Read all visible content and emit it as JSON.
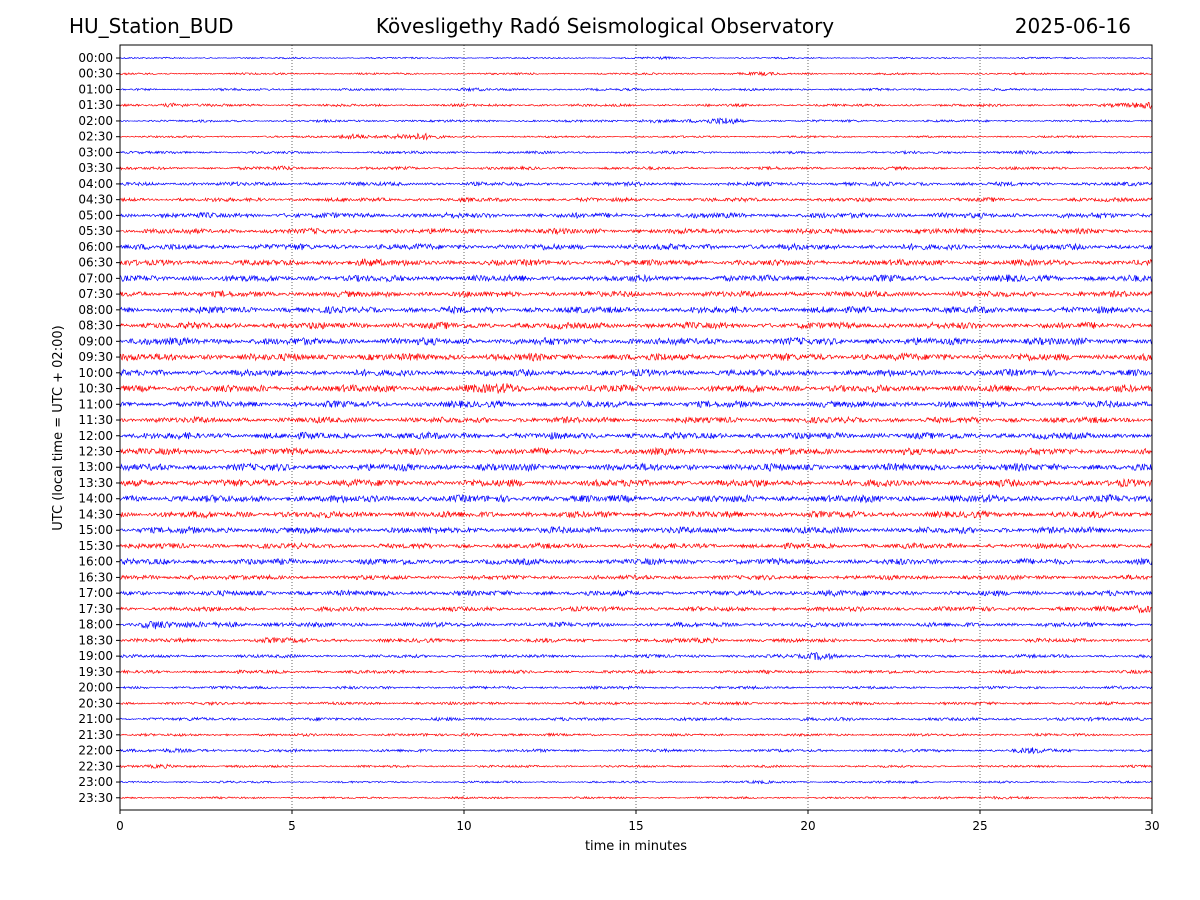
{
  "header": {
    "station": "HU_Station_BUD",
    "observatory": "Kövesligethy Radó Seismological Observatory",
    "date": "2025-06-16"
  },
  "chart_data": {
    "type": "line",
    "title": "Kövesligethy Radó Seismological Observatory",
    "xlabel": "time in minutes",
    "ylabel": "UTC (local time = UTC + 02:00)",
    "xlim": [
      0,
      30
    ],
    "x_ticks": [
      0,
      5,
      10,
      15,
      20,
      25,
      30
    ],
    "grid": "vertical dotted at x ticks",
    "row_colors": [
      "#0000ff",
      "#ff0000"
    ],
    "rows": [
      {
        "label": "00:00",
        "amp": 0.12,
        "events": [
          {
            "t": 15.5,
            "a": 0.1
          }
        ]
      },
      {
        "label": "00:30",
        "amp": 0.15,
        "events": [
          {
            "t": 18.5,
            "a": 0.15
          }
        ]
      },
      {
        "label": "01:00",
        "amp": 0.18,
        "events": [
          {
            "t": 10.0,
            "a": 0.1
          }
        ]
      },
      {
        "label": "01:30",
        "amp": 0.2,
        "events": [
          {
            "t": 1.5,
            "a": 0.25
          },
          {
            "t": 29.8,
            "a": 0.5
          }
        ]
      },
      {
        "label": "02:00",
        "amp": 0.18,
        "events": [
          {
            "t": 15.5,
            "a": 0.3
          },
          {
            "t": 17.5,
            "a": 0.4
          }
        ]
      },
      {
        "label": "02:30",
        "amp": 0.15,
        "events": [
          {
            "t": 7.0,
            "a": 0.6
          },
          {
            "t": 8.5,
            "a": 0.5
          }
        ]
      },
      {
        "label": "03:00",
        "amp": 0.2,
        "events": [
          {
            "t": 26.0,
            "a": 0.12
          }
        ]
      },
      {
        "label": "03:30",
        "amp": 0.22,
        "events": [
          {
            "t": 4.8,
            "a": 0.12
          }
        ]
      },
      {
        "label": "04:00",
        "amp": 0.3,
        "events": []
      },
      {
        "label": "04:30",
        "amp": 0.3,
        "events": []
      },
      {
        "label": "05:00",
        "amp": 0.4,
        "events": []
      },
      {
        "label": "05:30",
        "amp": 0.4,
        "events": []
      },
      {
        "label": "06:00",
        "amp": 0.45,
        "events": []
      },
      {
        "label": "06:30",
        "amp": 0.45,
        "events": [
          {
            "t": 7.0,
            "a": 0.3
          }
        ]
      },
      {
        "label": "07:00",
        "amp": 0.5,
        "events": []
      },
      {
        "label": "07:30",
        "amp": 0.45,
        "events": []
      },
      {
        "label": "08:00",
        "amp": 0.5,
        "events": []
      },
      {
        "label": "08:30",
        "amp": 0.5,
        "events": []
      },
      {
        "label": "09:00",
        "amp": 0.55,
        "events": []
      },
      {
        "label": "09:30",
        "amp": 0.55,
        "events": []
      },
      {
        "label": "10:00",
        "amp": 0.5,
        "events": []
      },
      {
        "label": "10:30",
        "amp": 0.55,
        "events": [
          {
            "t": 11.0,
            "a": 0.3
          }
        ]
      },
      {
        "label": "11:00",
        "amp": 0.5,
        "events": []
      },
      {
        "label": "11:30",
        "amp": 0.45,
        "events": []
      },
      {
        "label": "12:00",
        "amp": 0.5,
        "events": []
      },
      {
        "label": "12:30",
        "amp": 0.5,
        "events": []
      },
      {
        "label": "13:00",
        "amp": 0.55,
        "events": []
      },
      {
        "label": "13:30",
        "amp": 0.55,
        "events": []
      },
      {
        "label": "14:00",
        "amp": 0.55,
        "events": []
      },
      {
        "label": "14:30",
        "amp": 0.5,
        "events": []
      },
      {
        "label": "15:00",
        "amp": 0.5,
        "events": []
      },
      {
        "label": "15:30",
        "amp": 0.4,
        "events": []
      },
      {
        "label": "16:00",
        "amp": 0.45,
        "events": []
      },
      {
        "label": "16:30",
        "amp": 0.35,
        "events": [
          {
            "t": 2.0,
            "a": 0.2
          }
        ]
      },
      {
        "label": "17:00",
        "amp": 0.4,
        "events": [
          {
            "t": 20.5,
            "a": 0.2
          }
        ]
      },
      {
        "label": "17:30",
        "amp": 0.35,
        "events": [
          {
            "t": 29.8,
            "a": 0.5
          }
        ]
      },
      {
        "label": "18:00",
        "amp": 0.35,
        "events": [
          {
            "t": 1.0,
            "a": 0.45
          },
          {
            "t": 3.0,
            "a": 0.3
          }
        ]
      },
      {
        "label": "18:30",
        "amp": 0.3,
        "events": [
          {
            "t": 4.5,
            "a": 0.2
          },
          {
            "t": 17.0,
            "a": 0.2
          }
        ]
      },
      {
        "label": "19:00",
        "amp": 0.25,
        "events": [
          {
            "t": 20.5,
            "a": 0.6
          }
        ]
      },
      {
        "label": "19:30",
        "amp": 0.25,
        "events": []
      },
      {
        "label": "20:00",
        "amp": 0.22,
        "events": []
      },
      {
        "label": "20:30",
        "amp": 0.22,
        "events": []
      },
      {
        "label": "21:00",
        "amp": 0.25,
        "events": [
          {
            "t": 29.5,
            "a": 0.15
          }
        ]
      },
      {
        "label": "21:30",
        "amp": 0.2,
        "events": [
          {
            "t": 10.5,
            "a": 0.15
          }
        ]
      },
      {
        "label": "22:00",
        "amp": 0.22,
        "events": [
          {
            "t": 2.0,
            "a": 0.2
          },
          {
            "t": 26.5,
            "a": 0.25
          }
        ]
      },
      {
        "label": "22:30",
        "amp": 0.18,
        "events": [
          {
            "t": 1.5,
            "a": 0.25
          }
        ]
      },
      {
        "label": "23:00",
        "amp": 0.15,
        "events": [
          {
            "t": 19.0,
            "a": 0.12
          },
          {
            "t": 23.0,
            "a": 0.12
          }
        ]
      },
      {
        "label": "23:30",
        "amp": 0.15,
        "events": [
          {
            "t": 23.5,
            "a": 0.2
          },
          {
            "t": 26.0,
            "a": 0.15
          }
        ]
      }
    ]
  }
}
